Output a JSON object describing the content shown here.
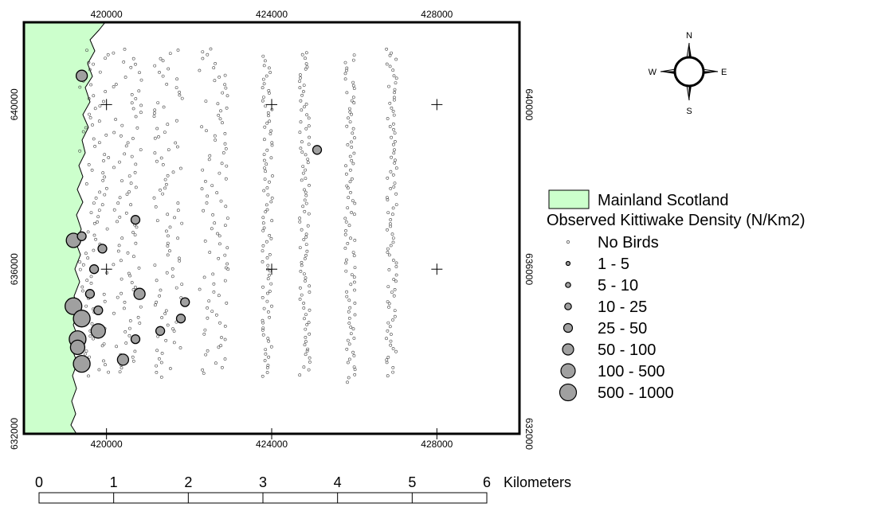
{
  "map": {
    "x_ticks": [
      {
        "value": 420000,
        "label": "420000"
      },
      {
        "value": 424000,
        "label": "424000"
      },
      {
        "value": 428000,
        "label": "428000"
      }
    ],
    "y_ticks": [
      {
        "value": 640000,
        "label": "640000"
      },
      {
        "value": 636000,
        "label": "636000"
      },
      {
        "value": 632000,
        "label": "632000"
      }
    ],
    "grid_crosses": [
      [
        420000,
        640000
      ],
      [
        424000,
        640000
      ],
      [
        428000,
        640000
      ],
      [
        420000,
        636000
      ],
      [
        424000,
        636000
      ],
      [
        428000,
        636000
      ],
      [
        420000,
        632000
      ],
      [
        424000,
        632000
      ],
      [
        428000,
        632000
      ]
    ],
    "survey_transects_x": [
      419700,
      420500,
      421500,
      422600,
      423900,
      424800,
      425900,
      426900
    ],
    "observations": [
      {
        "x": 419400,
        "y": 640700,
        "class": 5
      },
      {
        "x": 419200,
        "y": 636700,
        "class": 6
      },
      {
        "x": 419400,
        "y": 636800,
        "class": 4
      },
      {
        "x": 419900,
        "y": 636500,
        "class": 4
      },
      {
        "x": 419700,
        "y": 636000,
        "class": 4
      },
      {
        "x": 420700,
        "y": 637200,
        "class": 4
      },
      {
        "x": 425100,
        "y": 638900,
        "class": 4
      },
      {
        "x": 419600,
        "y": 635400,
        "class": 4
      },
      {
        "x": 420800,
        "y": 635400,
        "class": 5
      },
      {
        "x": 419200,
        "y": 635100,
        "class": 7
      },
      {
        "x": 419800,
        "y": 635000,
        "class": 4
      },
      {
        "x": 419400,
        "y": 634800,
        "class": 7
      },
      {
        "x": 421900,
        "y": 635200,
        "class": 4
      },
      {
        "x": 421800,
        "y": 634800,
        "class": 4
      },
      {
        "x": 419800,
        "y": 634500,
        "class": 6
      },
      {
        "x": 421300,
        "y": 634500,
        "class": 4
      },
      {
        "x": 420700,
        "y": 634300,
        "class": 4
      },
      {
        "x": 419300,
        "y": 634300,
        "class": 7
      },
      {
        "x": 419300,
        "y": 634100,
        "class": 6
      },
      {
        "x": 420400,
        "y": 633800,
        "class": 5
      },
      {
        "x": 419400,
        "y": 633700,
        "class": 7
      }
    ]
  },
  "compass": {
    "n": "N",
    "s": "S",
    "e": "E",
    "w": "W"
  },
  "legend": {
    "mainland": {
      "label": "Mainland Scotland",
      "color": "#ccffcc"
    },
    "density_title": "Observed Kittiwake Density (N/Km2)",
    "classes": [
      {
        "label": "No Birds"
      },
      {
        "label": "1 - 5"
      },
      {
        "label": "5 - 10"
      },
      {
        "label": "10 - 25"
      },
      {
        "label": "25 - 50"
      },
      {
        "label": "50 - 100"
      },
      {
        "label": "100 - 500"
      },
      {
        "label": "500 - 1000"
      }
    ],
    "symbol_fill": "#a0a0a0"
  },
  "scale_bar": {
    "labels": [
      "0",
      "1",
      "2",
      "3",
      "4",
      "5",
      "6"
    ],
    "unit": "Kilometers"
  }
}
